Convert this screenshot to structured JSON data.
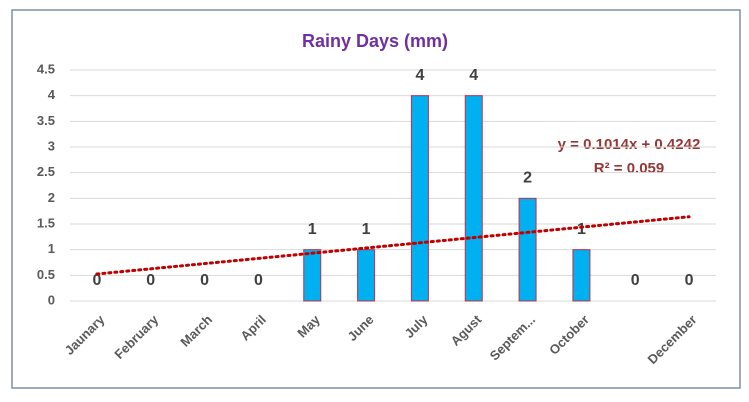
{
  "chart_data": {
    "type": "bar",
    "title": "Rainy Days (mm)",
    "categories": [
      "Jaunary",
      "February",
      "March",
      "April",
      "May",
      "June",
      "July",
      "Agust",
      "Septem...",
      "October",
      null,
      "December"
    ],
    "values": [
      0,
      0,
      0,
      0,
      1,
      1,
      4,
      4,
      2,
      1,
      0,
      0
    ],
    "color": "#00b0f0",
    "edge_color": "#c0304a",
    "ylim": [
      0,
      4.5
    ],
    "yticks": [
      0,
      0.5,
      1,
      1.5,
      2,
      2.5,
      3,
      3.5,
      4,
      4.5
    ],
    "grid": true,
    "trendline": {
      "type": "linear",
      "color": "#c00000",
      "style": "dotted"
    },
    "annotations": [
      "y = 0.1014x + 0.4242",
      "R² = 0.059"
    ]
  }
}
